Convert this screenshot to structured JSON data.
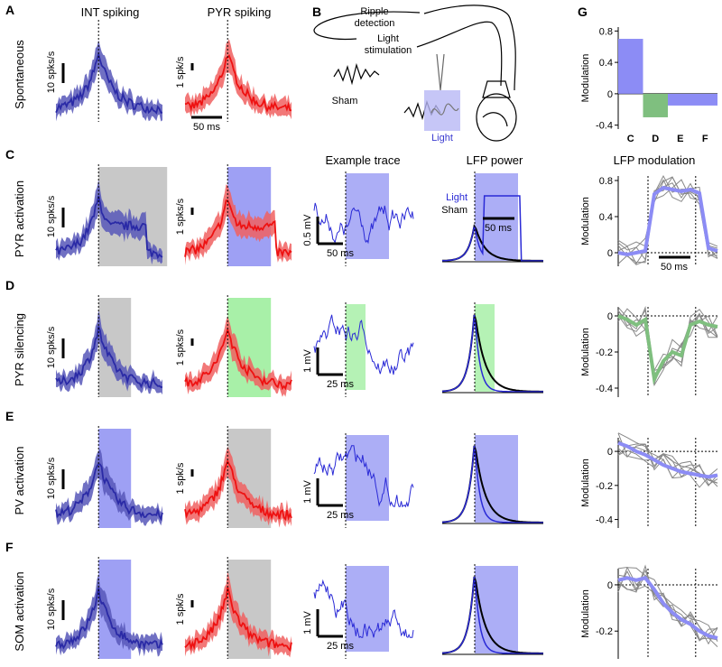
{
  "header": {
    "col_titles": [
      "INT spiking",
      "PYR spiking",
      "Example trace",
      "LFP power",
      "LFP modulation"
    ]
  },
  "panel_b": {
    "letter": "B",
    "ripple": "Ripple",
    "detection": "detection",
    "light_top": "Light",
    "stimulation": "stimulation",
    "sham": "Sham",
    "light": "Light"
  },
  "rows": [
    {
      "letter": "A",
      "label": "Spontaneous",
      "int_scale": "10 spks/s",
      "pyr_scale": "1 spk/s",
      "pyr_time": "50 ms"
    },
    {
      "letter": "C",
      "label": "PYR activation",
      "int_scale": "10 spks/s",
      "pyr_scale": "1 spks/s",
      "int_shade": "#c8c8c8",
      "pyr_shade": "#9ea0f4",
      "trace_v": "0.5 mV",
      "trace_t": "50 ms",
      "trace_shade": "#9ea0f4",
      "power_light": "Light",
      "power_sham": "Sham",
      "power_t": "50 ms",
      "power_shade": "#9ea0f4",
      "mod_t": "50 ms"
    },
    {
      "letter": "D",
      "label": "PYR silencing",
      "int_scale": "10 spks/s",
      "pyr_scale": "1 spks/s",
      "int_shade": "#c8c8c8",
      "pyr_shade": "#a8f0a8",
      "trace_v": "1 mV",
      "trace_t": "25 ms",
      "trace_shade": "#a8f0a8",
      "power_shade": "#a8f0a8"
    },
    {
      "letter": "E",
      "label": "PV activation",
      "int_scale": "10 spks/s",
      "pyr_scale": "1 spk/s",
      "int_shade": "#9ea0f4",
      "pyr_shade": "#c8c8c8",
      "trace_v": "1 mV",
      "trace_t": "25 ms",
      "trace_shade": "#9ea0f4",
      "power_shade": "#9ea0f4"
    },
    {
      "letter": "F",
      "label": "SOM activation",
      "int_scale": "10 spks/s",
      "pyr_scale": "1 spk/s",
      "int_shade": "#9ea0f4",
      "pyr_shade": "#c8c8c8",
      "trace_v": "1 mV",
      "trace_t": "25 ms",
      "trace_shade": "#9ea0f4",
      "power_shade": "#9ea0f4"
    }
  ],
  "chart_data": [
    {
      "type": "bar",
      "letter": "G",
      "ylabel": "Modulation",
      "categories": [
        "C",
        "D",
        "E",
        "F"
      ],
      "values": [
        0.7,
        -0.3,
        -0.15,
        -0.15
      ],
      "colors": [
        "#8c8cf5",
        "#7fbf7f",
        "#8c8cf5",
        "#8c8cf5"
      ],
      "ylim": [
        -0.45,
        0.85
      ],
      "yticks": [
        -0.4,
        0,
        0.4,
        0.8
      ]
    },
    {
      "type": "line",
      "ylabel": "Modulation",
      "color": "#8c8cf5",
      "values": [
        0,
        -0.02,
        0,
        0.02,
        0.65,
        0.72,
        0.7,
        0.68,
        0.7,
        0.66,
        0.05,
        0.02
      ],
      "ylim": [
        -0.15,
        0.85
      ],
      "yticks": [
        0,
        0.4,
        0.8
      ]
    },
    {
      "type": "line",
      "ylabel": "Modulation",
      "color": "#7fbf7f",
      "values": [
        0,
        -0.02,
        -0.05,
        -0.02,
        -0.35,
        -0.25,
        -0.2,
        -0.22,
        -0.05,
        -0.03,
        -0.05,
        -0.06
      ],
      "ylim": [
        -0.45,
        0.05
      ],
      "yticks": [
        -0.4,
        -0.2,
        0
      ]
    },
    {
      "type": "line",
      "ylabel": "Modulation",
      "color": "#8c8cf5",
      "values": [
        0.05,
        0.03,
        0,
        -0.02,
        -0.05,
        -0.08,
        -0.1,
        -0.12,
        -0.13,
        -0.14,
        -0.15,
        -0.14
      ],
      "ylim": [
        -0.45,
        0.08
      ],
      "yticks": [
        -0.4,
        -0.2,
        0
      ]
    },
    {
      "type": "line",
      "ylabel": "Modulation",
      "color": "#8c8cf5",
      "values": [
        0.02,
        0.03,
        0.02,
        0.03,
        -0.02,
        -0.08,
        -0.12,
        -0.15,
        -0.17,
        -0.2,
        -0.22,
        -0.23
      ],
      "ylim": [
        -0.32,
        0.07
      ],
      "yticks": [
        -0.2,
        0
      ]
    }
  ]
}
